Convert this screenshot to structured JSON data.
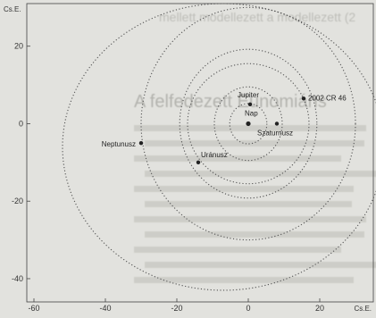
{
  "axes": {
    "x_unit_label": "Cs.E.",
    "y_unit_label": "Cs.E.",
    "x_ticks": [
      -60,
      -40,
      -20,
      0,
      20
    ],
    "y_ticks": [
      20,
      0,
      -20,
      -40
    ],
    "xlim": [
      -62,
      35
    ],
    "ylim": [
      -46,
      31
    ]
  },
  "background_text": {
    "heading": "A felfedezett Eunomiáns",
    "fragment": "mellett modellezett a modellezett (2"
  },
  "bodies": [
    {
      "name": "Nap",
      "x": 0,
      "y": 0
    },
    {
      "name": "Jupiter",
      "x": 0.5,
      "y": 5
    },
    {
      "name": "Szaturnusz",
      "x": 8,
      "y": 0
    },
    {
      "name": "Uránusz",
      "x": -14,
      "y": -10
    },
    {
      "name": "Neptunusz",
      "x": -30,
      "y": -5
    },
    {
      "name": "2002 CR 46",
      "x": 15.5,
      "y": 6.5
    }
  ],
  "orbits": [
    {
      "name": "Jupiter",
      "a": 5.2,
      "e": 0,
      "center": [
        0,
        0
      ]
    },
    {
      "name": "Szaturnusz",
      "a": 9.5,
      "e": 0,
      "center": [
        0,
        0
      ]
    },
    {
      "name": "Uránusz",
      "a": 19.2,
      "e": 0,
      "center": [
        0,
        0
      ]
    },
    {
      "name": "2002 CR 46",
      "a": 17,
      "b": 15.5,
      "center": [
        0,
        0
      ]
    },
    {
      "name": "Neptunusz",
      "a": 30,
      "b": 30,
      "center": [
        0,
        0
      ]
    },
    {
      "name": "outer-orbit",
      "a": 45,
      "b": 37,
      "center": [
        -7,
        -6
      ]
    }
  ]
}
